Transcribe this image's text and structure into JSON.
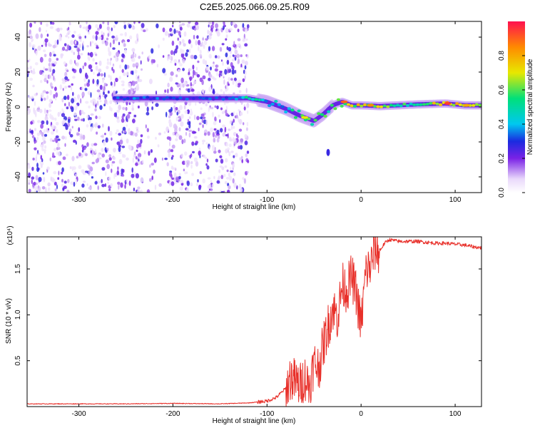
{
  "title": "C2E5.2025.066.09.25.R09",
  "chart_data": [
    {
      "type": "heatmap",
      "xlabel": "Height of straight line (km)",
      "ylabel": "Frequency (Hz)",
      "xlim": [
        -355,
        128
      ],
      "ylim": [
        -49,
        49
      ],
      "x_ticks": [
        -300,
        -200,
        -100,
        0,
        100
      ],
      "x_tick_labels": [
        "-300",
        "-200",
        "-100",
        "0",
        "100"
      ],
      "y_ticks": [
        -40,
        -20,
        0,
        20,
        40
      ],
      "y_tick_labels": [
        "-40",
        "-20",
        "0",
        "20",
        "40"
      ],
      "colorbar": {
        "label": "Normalized spectral amplitude",
        "range": [
          0,
          1
        ],
        "ticks": [
          0.0,
          0.2,
          0.4,
          0.6,
          0.8
        ],
        "tick_labels": [
          "0.0",
          "0.2",
          "0.4",
          "0.6",
          "0.8"
        ]
      },
      "noise_region_x": [
        -355,
        -120
      ],
      "ridge": [
        {
          "x": -262,
          "f": 5,
          "a": 0.35
        },
        {
          "x": -200,
          "f": 5,
          "a": 0.33
        },
        {
          "x": -140,
          "f": 5,
          "a": 0.32
        },
        {
          "x": -120,
          "f": 5,
          "a": 0.55
        },
        {
          "x": -100,
          "f": 3,
          "a": 0.4
        },
        {
          "x": -80,
          "f": -1,
          "a": 0.45
        },
        {
          "x": -65,
          "f": -5,
          "a": 0.55
        },
        {
          "x": -50,
          "f": -8,
          "a": 0.6
        },
        {
          "x": -40,
          "f": -4,
          "a": 0.55
        },
        {
          "x": -30,
          "f": 1,
          "a": 0.6
        },
        {
          "x": -20,
          "f": 3,
          "a": 0.75
        },
        {
          "x": -10,
          "f": 1,
          "a": 0.7
        },
        {
          "x": 0,
          "f": 1,
          "a": 0.75
        },
        {
          "x": 20,
          "f": 0.5,
          "a": 0.7
        },
        {
          "x": 40,
          "f": 1,
          "a": 0.6
        },
        {
          "x": 60,
          "f": 1.5,
          "a": 0.55
        },
        {
          "x": 90,
          "f": 2,
          "a": 0.85
        },
        {
          "x": 110,
          "f": 1,
          "a": 0.7
        },
        {
          "x": 128,
          "f": 1,
          "a": 0.65
        }
      ],
      "isolated_blob": {
        "x": -35,
        "f": -26,
        "a": 0.15
      }
    },
    {
      "type": "line",
      "xlabel": "Height of straight line (km)",
      "ylabel": "SNR (10 * v/v)",
      "y_scale_label": "(x10⁴)",
      "xlim": [
        -355,
        128
      ],
      "ylim": [
        0,
        1.85
      ],
      "x_ticks": [
        -300,
        -200,
        -100,
        0,
        100
      ],
      "x_tick_labels": [
        "-300",
        "-200",
        "-100",
        "0",
        "100"
      ],
      "y_ticks": [
        0.5,
        1.0,
        1.5
      ],
      "y_tick_labels": [
        "0.5",
        "1.0",
        "1.5"
      ],
      "color": "#e8302a",
      "series": [
        {
          "x": [
            -355,
            -300,
            -250,
            -200,
            -150,
            -120,
            -100,
            -90,
            -80,
            -75,
            -70,
            -65,
            -60,
            -55,
            -50,
            -45,
            -40,
            -35,
            -30,
            -25,
            -20,
            -15,
            -10,
            -5,
            0,
            5,
            10,
            15,
            20,
            25,
            30,
            40,
            50,
            60,
            70,
            80,
            90,
            100,
            110,
            120,
            128
          ],
          "y": [
            0.03,
            0.03,
            0.03,
            0.035,
            0.03,
            0.04,
            0.06,
            0.1,
            0.2,
            0.35,
            0.3,
            0.25,
            0.35,
            0.25,
            0.5,
            0.45,
            0.7,
            0.9,
            1.1,
            1.0,
            1.35,
            1.3,
            1.45,
            1.25,
            0.9,
            1.5,
            1.55,
            1.75,
            1.7,
            1.78,
            1.82,
            1.8,
            1.8,
            1.8,
            1.79,
            1.78,
            1.78,
            1.77,
            1.76,
            1.74,
            1.73
          ]
        }
      ]
    }
  ]
}
